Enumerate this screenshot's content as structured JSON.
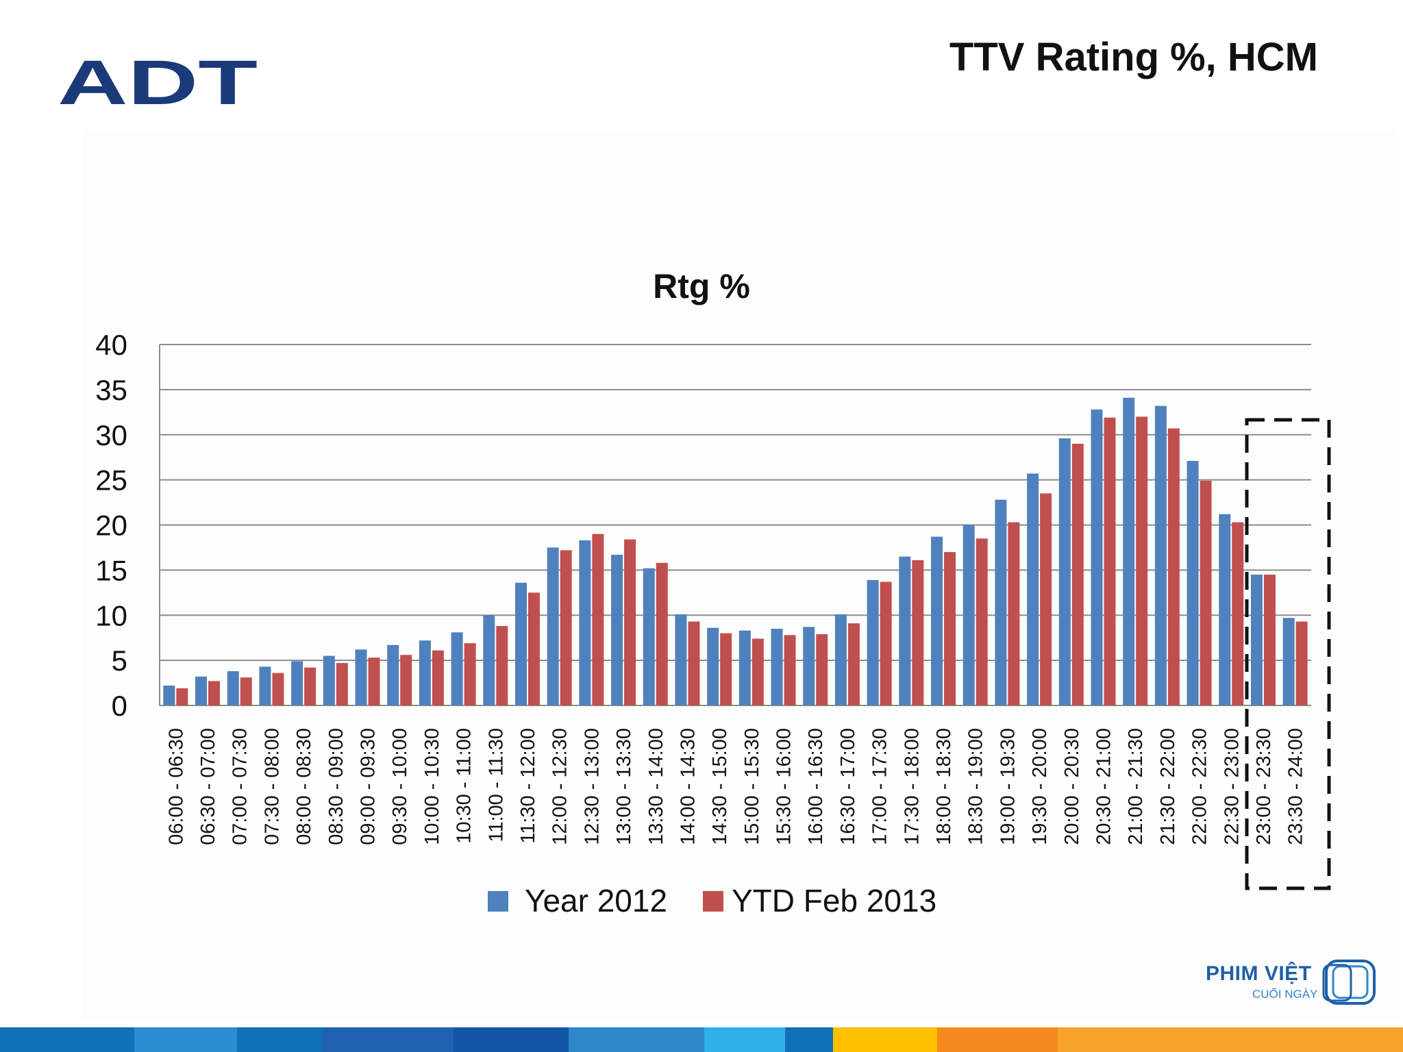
{
  "slide": {
    "title": "TTV Rating %, HCM",
    "logo_text": "ADT",
    "brand_name": "PHIM VIỆT",
    "brand_tagline": "CUỐI NGÀY"
  },
  "colors": {
    "year2012": "#4f81bd",
    "ytd2013": "#c0504d",
    "adt_logo": "#1b3a7a",
    "brand": "#1e5fa6",
    "footer": [
      "#1270b8",
      "#2d8bd0",
      "#1270b8",
      "#1f63b0",
      "#1255a6",
      "#2f86c9",
      "#30b0e8",
      "#1270b8",
      "#ffc000",
      "#f58a1f",
      "#f8a42c"
    ]
  },
  "chart_data": {
    "type": "bar",
    "title": "Rtg %",
    "ylim": [
      0,
      40
    ],
    "yticks": [
      0,
      5,
      10,
      15,
      20,
      25,
      30,
      35,
      40
    ],
    "grid": true,
    "legend_position": "bottom",
    "categories": [
      "06:00 - 06:30",
      "06:30 - 07:00",
      "07:00 - 07:30",
      "07:30 - 08:00",
      "08:00 - 08:30",
      "08:30 - 09:00",
      "09:00 - 09:30",
      "09:30 - 10:00",
      "10:00 - 10:30",
      "10:30 - 11:00",
      "11:00 - 11:30",
      "11:30 - 12:00",
      "12:00 - 12:30",
      "12:30 - 13:00",
      "13:00 - 13:30",
      "13:30 - 14:00",
      "14:00 - 14:30",
      "14:30 - 15:00",
      "15:00 - 15:30",
      "15:30 - 16:00",
      "16:00 - 16:30",
      "16:30 - 17:00",
      "17:00 - 17:30",
      "17:30 - 18:00",
      "18:00 - 18:30",
      "18:30 - 19:00",
      "19:00 - 19:30",
      "19:30 - 20:00",
      "20:00 - 20:30",
      "20:30 - 21:00",
      "21:00 - 21:30",
      "21:30 - 22:00",
      "22:00 - 22:30",
      "22:30 - 23:00",
      "23:00 - 23:30",
      "23:30 - 24:00"
    ],
    "series": [
      {
        "name": "Year 2012",
        "values": [
          2.2,
          3.2,
          3.8,
          4.3,
          4.9,
          5.5,
          6.2,
          6.7,
          7.2,
          8.1,
          10.0,
          13.6,
          17.5,
          18.3,
          16.7,
          15.2,
          10.1,
          8.6,
          8.3,
          8.5,
          8.7,
          10.1,
          13.9,
          16.5,
          18.7,
          20.0,
          22.8,
          25.7,
          29.6,
          32.8,
          34.1,
          33.2,
          27.1,
          21.2,
          14.5,
          9.7
        ]
      },
      {
        "name": "YTD Feb 2013",
        "values": [
          1.9,
          2.7,
          3.1,
          3.6,
          4.2,
          4.7,
          5.3,
          5.6,
          6.1,
          6.9,
          8.8,
          12.5,
          17.2,
          19.0,
          18.4,
          15.8,
          9.3,
          8.0,
          7.4,
          7.8,
          7.9,
          9.1,
          13.7,
          16.1,
          17.0,
          18.5,
          20.3,
          23.5,
          29.0,
          31.9,
          32.0,
          30.7,
          24.9,
          20.3,
          14.5,
          9.3
        ]
      }
    ]
  }
}
